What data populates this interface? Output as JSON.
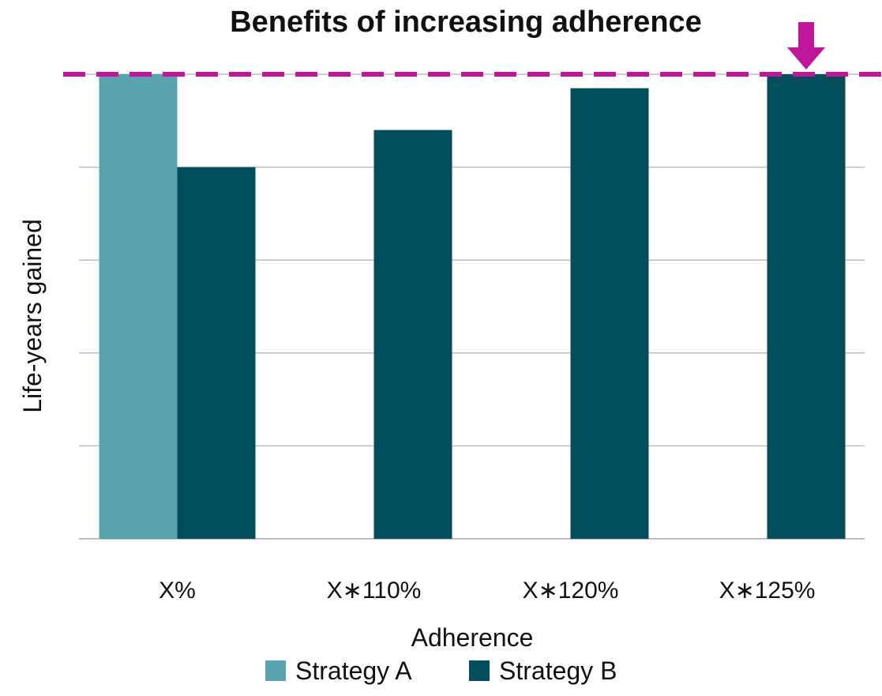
{
  "chart_data": {
    "type": "bar",
    "title": "Benefits of increasing adherence",
    "xlabel": "Adherence",
    "ylabel": "Life-years gained",
    "categories": [
      "X%",
      "X∗110%",
      "X∗120%",
      "X∗125%"
    ],
    "series": [
      {
        "name": "Strategy A",
        "color": "#58a3ad",
        "values": [
          5,
          null,
          null,
          null
        ]
      },
      {
        "name": "Strategy B",
        "color": "#024d5b",
        "values": [
          4,
          4.4,
          4.85,
          5
        ]
      }
    ],
    "ylim": [
      0,
      5
    ],
    "grid": true,
    "y_tick_labels_shown": false,
    "reference_line": {
      "value": 5,
      "style": "dashed",
      "color": "#c0179a"
    },
    "marker": {
      "icon": "down-arrow-icon",
      "category": "X∗125%",
      "color": "#c0179a"
    },
    "legend_position": "bottom"
  }
}
